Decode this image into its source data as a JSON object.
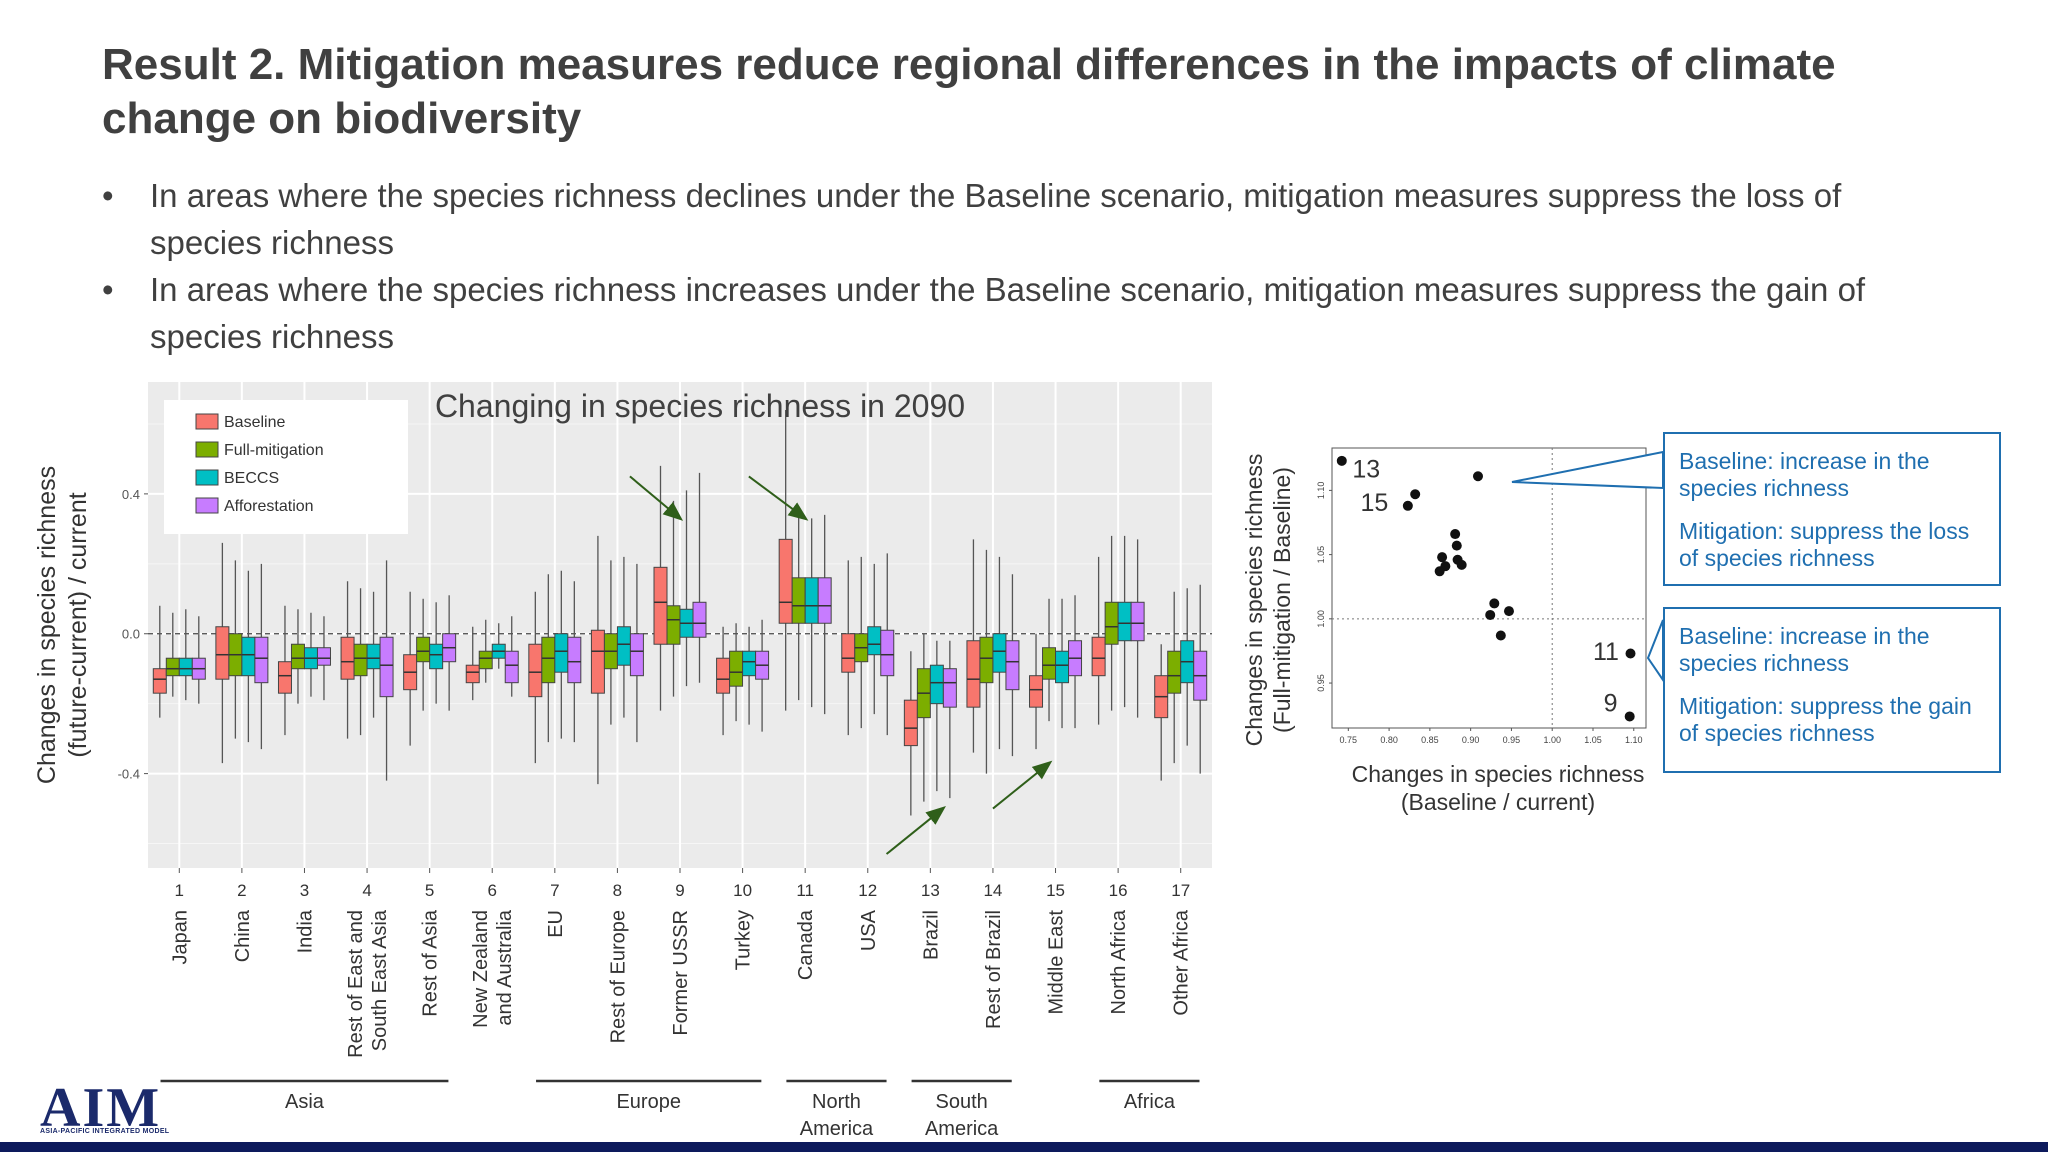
{
  "slide": {
    "title": "Result 2. Mitigation measures reduce regional differences in the impacts of climate change on biodiversity",
    "bullets": [
      "In areas where the  species richness declines under the Baseline scenario, mitigation measures suppress the loss of species richness",
      "In areas where the  species richness increases under the Baseline scenario, mitigation measures suppress the gain of species richness"
    ],
    "bullet_symbol": "•"
  },
  "chart_data": [
    {
      "type": "box",
      "title": "Changing in species richness in 2090",
      "ylabel": [
        "Changes in species richness",
        "(future-current) / current"
      ],
      "xlabel": "",
      "ylim": [
        -0.67,
        0.72
      ],
      "yticks": [
        -0.4,
        0.0,
        0.4
      ],
      "ytick_labels": [
        "-0.4",
        "0.0",
        "0.4"
      ],
      "grid": true,
      "reference_line": 0.0,
      "legend": {
        "placement": "top-left",
        "entries": [
          "Baseline",
          "Full-mitigation",
          "BECCS",
          "Afforestation"
        ]
      },
      "series": [
        {
          "name": "Baseline",
          "color": "#f8766d"
        },
        {
          "name": "Full-mitigation",
          "color": "#7cae00"
        },
        {
          "name": "BECCS",
          "color": "#00bfc4"
        },
        {
          "name": "Afforestation",
          "color": "#c77cff"
        }
      ],
      "categories": [
        {
          "num": "1",
          "name": [
            "Japan"
          ]
        },
        {
          "num": "2",
          "name": [
            "China"
          ]
        },
        {
          "num": "3",
          "name": [
            "India"
          ]
        },
        {
          "num": "4",
          "name": [
            "Rest of East and",
            "South East Asia"
          ]
        },
        {
          "num": "5",
          "name": [
            "Rest of Asia"
          ]
        },
        {
          "num": "6",
          "name": [
            "New Zealand",
            "and Australia"
          ]
        },
        {
          "num": "7",
          "name": [
            "EU"
          ]
        },
        {
          "num": "8",
          "name": [
            "Rest of Europe"
          ]
        },
        {
          "num": "9",
          "name": [
            "Former USSR"
          ]
        },
        {
          "num": "10",
          "name": [
            "Turkey"
          ]
        },
        {
          "num": "11",
          "name": [
            "Canada"
          ]
        },
        {
          "num": "12",
          "name": [
            "USA"
          ]
        },
        {
          "num": "13",
          "name": [
            "Brazil"
          ]
        },
        {
          "num": "14",
          "name": [
            "Rest of Brazil"
          ]
        },
        {
          "num": "15",
          "name": [
            "Middle East"
          ]
        },
        {
          "num": "16",
          "name": [
            "North Africa"
          ]
        },
        {
          "num": "17",
          "name": [
            "Other Africa"
          ]
        }
      ],
      "groups": [
        {
          "label": [
            "Asia"
          ],
          "from": 1,
          "to": 5
        },
        {
          "label": [
            "Europe"
          ],
          "from": 7,
          "to": 10
        },
        {
          "label": [
            "North",
            "America"
          ],
          "from": 11,
          "to": 12
        },
        {
          "label": [
            "South",
            "America"
          ],
          "from": 13,
          "to": 14
        },
        {
          "label": [
            "Africa"
          ],
          "from": 16,
          "to": 17
        }
      ],
      "boxes": [
        [
          [
            -0.24,
            -0.17,
            -0.13,
            -0.1,
            0.08
          ],
          [
            -0.18,
            -0.12,
            -0.1,
            -0.07,
            0.06
          ],
          [
            -0.19,
            -0.12,
            -0.1,
            -0.07,
            0.07
          ],
          [
            -0.2,
            -0.13,
            -0.1,
            -0.07,
            0.05
          ]
        ],
        [
          [
            -0.37,
            -0.13,
            -0.06,
            0.02,
            0.26
          ],
          [
            -0.3,
            -0.12,
            -0.06,
            0.0,
            0.21
          ],
          [
            -0.31,
            -0.12,
            -0.06,
            -0.01,
            0.18
          ],
          [
            -0.33,
            -0.14,
            -0.07,
            -0.01,
            0.2
          ]
        ],
        [
          [
            -0.29,
            -0.17,
            -0.12,
            -0.08,
            0.08
          ],
          [
            -0.2,
            -0.1,
            -0.07,
            -0.03,
            0.07
          ],
          [
            -0.18,
            -0.1,
            -0.07,
            -0.04,
            0.06
          ],
          [
            -0.19,
            -0.09,
            -0.07,
            -0.04,
            0.05
          ]
        ],
        [
          [
            -0.3,
            -0.13,
            -0.08,
            -0.01,
            0.15
          ],
          [
            -0.29,
            -0.12,
            -0.07,
            -0.03,
            0.13
          ],
          [
            -0.24,
            -0.1,
            -0.07,
            -0.03,
            0.12
          ],
          [
            -0.42,
            -0.18,
            -0.09,
            -0.01,
            0.21
          ]
        ],
        [
          [
            -0.32,
            -0.16,
            -0.11,
            -0.06,
            0.12
          ],
          [
            -0.22,
            -0.08,
            -0.05,
            -0.01,
            0.1
          ],
          [
            -0.2,
            -0.1,
            -0.06,
            -0.03,
            0.09
          ],
          [
            -0.22,
            -0.08,
            -0.04,
            0.0,
            0.11
          ]
        ],
        [
          [
            -0.19,
            -0.14,
            -0.11,
            -0.09,
            0.02
          ],
          [
            -0.14,
            -0.1,
            -0.07,
            -0.05,
            0.04
          ],
          [
            -0.1,
            -0.07,
            -0.05,
            -0.03,
            0.03
          ],
          [
            -0.18,
            -0.14,
            -0.09,
            -0.05,
            0.05
          ]
        ],
        [
          [
            -0.37,
            -0.18,
            -0.11,
            -0.03,
            0.12
          ],
          [
            -0.31,
            -0.14,
            -0.07,
            -0.01,
            0.17
          ],
          [
            -0.3,
            -0.11,
            -0.05,
            0.0,
            0.18
          ],
          [
            -0.31,
            -0.14,
            -0.08,
            -0.01,
            0.15
          ]
        ],
        [
          [
            -0.43,
            -0.17,
            -0.05,
            0.01,
            0.28
          ],
          [
            -0.26,
            -0.1,
            -0.05,
            0.0,
            0.21
          ],
          [
            -0.24,
            -0.09,
            -0.03,
            0.02,
            0.22
          ],
          [
            -0.31,
            -0.12,
            -0.05,
            0.0,
            0.2
          ]
        ],
        [
          [
            -0.22,
            -0.03,
            0.09,
            0.19,
            0.48
          ],
          [
            -0.18,
            -0.03,
            0.04,
            0.08,
            0.38
          ],
          [
            -0.15,
            -0.01,
            0.03,
            0.07,
            0.41
          ],
          [
            -0.14,
            -0.01,
            0.03,
            0.09,
            0.46
          ]
        ],
        [
          [
            -0.29,
            -0.17,
            -0.13,
            -0.07,
            0.02
          ],
          [
            -0.25,
            -0.15,
            -0.11,
            -0.05,
            0.03
          ],
          [
            -0.26,
            -0.12,
            -0.08,
            -0.05,
            0.02
          ],
          [
            -0.28,
            -0.13,
            -0.09,
            -0.05,
            0.04
          ]
        ],
        [
          [
            -0.22,
            0.03,
            0.09,
            0.27,
            0.64
          ],
          [
            -0.19,
            0.03,
            0.08,
            0.16,
            0.34
          ],
          [
            -0.21,
            0.03,
            0.08,
            0.16,
            0.33
          ],
          [
            -0.23,
            0.03,
            0.08,
            0.16,
            0.34
          ]
        ],
        [
          [
            -0.29,
            -0.11,
            -0.07,
            0.0,
            0.21
          ],
          [
            -0.27,
            -0.08,
            -0.04,
            0.0,
            0.22
          ],
          [
            -0.23,
            -0.06,
            -0.03,
            0.02,
            0.2
          ],
          [
            -0.29,
            -0.12,
            -0.06,
            0.01,
            0.23
          ]
        ],
        [
          [
            -0.52,
            -0.32,
            -0.27,
            -0.19,
            -0.05
          ],
          [
            -0.48,
            -0.24,
            -0.17,
            -0.1,
            0.0
          ],
          [
            -0.45,
            -0.2,
            -0.14,
            -0.09,
            -0.02
          ],
          [
            -0.47,
            -0.21,
            -0.14,
            -0.1,
            -0.02
          ]
        ],
        [
          [
            -0.34,
            -0.21,
            -0.13,
            -0.02,
            0.27
          ],
          [
            -0.4,
            -0.14,
            -0.07,
            -0.01,
            0.24
          ],
          [
            -0.33,
            -0.11,
            -0.05,
            0.0,
            0.22
          ],
          [
            -0.35,
            -0.16,
            -0.08,
            -0.02,
            0.17
          ]
        ],
        [
          [
            -0.33,
            -0.21,
            -0.16,
            -0.12,
            0.0
          ],
          [
            -0.25,
            -0.13,
            -0.09,
            -0.04,
            0.1
          ],
          [
            -0.27,
            -0.14,
            -0.09,
            -0.05,
            0.1
          ],
          [
            -0.27,
            -0.12,
            -0.07,
            -0.02,
            0.11
          ]
        ],
        [
          [
            -0.26,
            -0.12,
            -0.07,
            -0.01,
            0.22
          ],
          [
            -0.22,
            -0.03,
            0.02,
            0.09,
            0.28
          ],
          [
            -0.21,
            -0.02,
            0.03,
            0.09,
            0.28
          ],
          [
            -0.24,
            -0.02,
            0.03,
            0.09,
            0.27
          ]
        ],
        [
          [
            -0.42,
            -0.24,
            -0.18,
            -0.12,
            -0.03
          ],
          [
            -0.37,
            -0.17,
            -0.12,
            -0.05,
            0.12
          ],
          [
            -0.32,
            -0.14,
            -0.08,
            -0.02,
            0.13
          ],
          [
            -0.4,
            -0.19,
            -0.12,
            -0.05,
            0.14
          ]
        ]
      ],
      "box_order": [
        "whisker_low",
        "q1",
        "median",
        "q3",
        "whisker_high"
      ],
      "annotations": [
        {
          "type": "arrow",
          "from": [
            8.2,
            0.45
          ],
          "to": [
            9.0,
            0.33
          ]
        },
        {
          "type": "arrow",
          "from": [
            10.1,
            0.45
          ],
          "to": [
            11.0,
            0.33
          ]
        },
        {
          "type": "arrow",
          "from": [
            12.3,
            -0.63
          ],
          "to": [
            13.2,
            -0.5
          ]
        },
        {
          "type": "arrow",
          "from": [
            14.0,
            -0.5
          ],
          "to": [
            14.9,
            -0.37
          ]
        }
      ]
    },
    {
      "type": "scatter",
      "title": "",
      "xlabel": [
        "Changes in species richness",
        "(Baseline / current)"
      ],
      "ylabel": [
        "Changes in species richness",
        "(Full-mitigation / Baseline)"
      ],
      "xlim": [
        0.73,
        1.115
      ],
      "ylim": [
        0.915,
        1.133
      ],
      "xticks": [
        0.75,
        0.8,
        0.85,
        0.9,
        0.95,
        1.0,
        1.05,
        1.1
      ],
      "xtick_labels": [
        "0.75",
        "0.80",
        "0.85",
        "0.90",
        "0.95",
        "1.00",
        "1.05",
        "1.10"
      ],
      "yticks": [
        0.95,
        1.0,
        1.05,
        1.1
      ],
      "ytick_labels": [
        "0.95",
        "1.00",
        "1.05",
        "1.10"
      ],
      "reference_lines": {
        "x": 1.0,
        "y": 1.0
      },
      "grid": false,
      "points": [
        {
          "x": 0.742,
          "y": 1.123
        },
        {
          "x": 0.823,
          "y": 1.088
        },
        {
          "x": 0.832,
          "y": 1.097
        },
        {
          "x": 0.909,
          "y": 1.111
        },
        {
          "x": 0.881,
          "y": 1.066
        },
        {
          "x": 0.883,
          "y": 1.057
        },
        {
          "x": 0.865,
          "y": 1.048
        },
        {
          "x": 0.884,
          "y": 1.046
        },
        {
          "x": 0.869,
          "y": 1.041
        },
        {
          "x": 0.889,
          "y": 1.042
        },
        {
          "x": 0.862,
          "y": 1.037
        },
        {
          "x": 0.929,
          "y": 1.012
        },
        {
          "x": 0.947,
          "y": 1.006
        },
        {
          "x": 0.924,
          "y": 1.003
        },
        {
          "x": 0.937,
          "y": 0.987
        },
        {
          "x": 1.096,
          "y": 0.973
        },
        {
          "x": 1.095,
          "y": 0.924
        }
      ],
      "point_labels": [
        {
          "text": "13",
          "x": 0.755,
          "y": 1.11
        },
        {
          "text": "15",
          "x": 0.765,
          "y": 1.084
        },
        {
          "text": "11",
          "x": 1.05,
          "y": 0.968
        },
        {
          "text": "9",
          "x": 1.063,
          "y": 0.928
        }
      ]
    }
  ],
  "callouts": {
    "top": [
      "Baseline: increase in the species richness",
      "Mitigation: suppress the loss of species richness"
    ],
    "bottom": [
      "Baseline: increase in the species richness",
      "Mitigation: suppress the gain of species richness"
    ]
  },
  "logo": {
    "text": "AIM",
    "subtitle": "ASIA-PACIFIC INTEGRATED MODEL"
  },
  "colors": {
    "title": "#404040",
    "callout": "#1f6fb0",
    "footer_bar": "#0d1a5c",
    "panel_bg": "#ebebeb",
    "arrow": "#2f5f1a"
  }
}
